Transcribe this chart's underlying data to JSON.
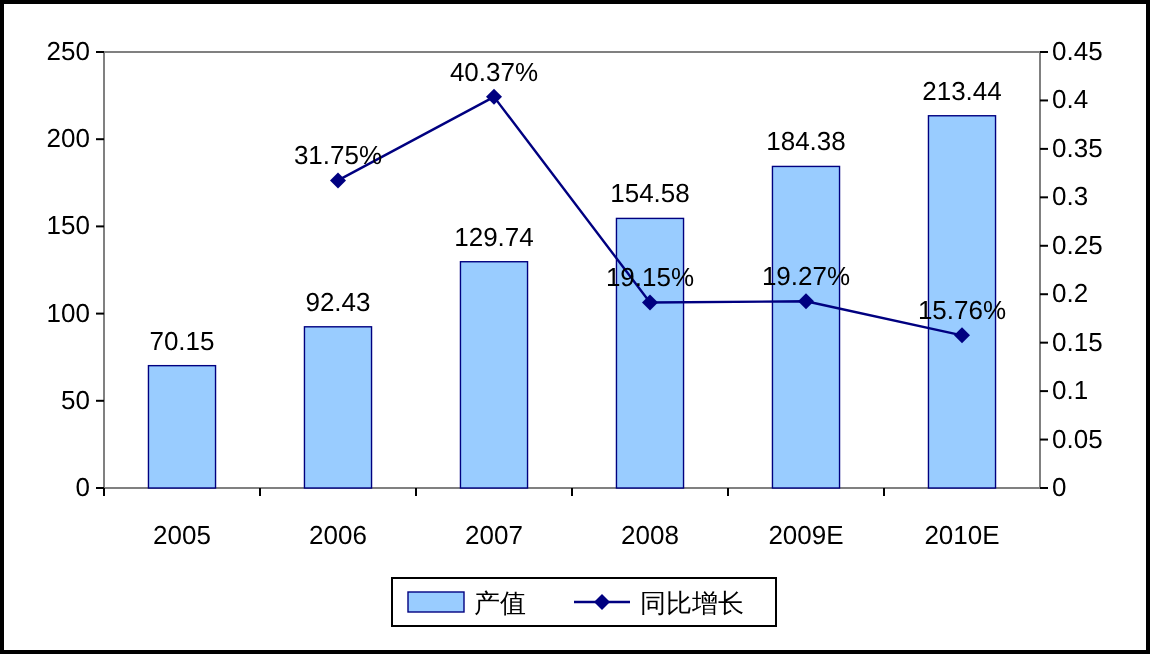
{
  "chart_data": {
    "type": "bar",
    "categories": [
      "2005",
      "2006",
      "2007",
      "2008",
      "2009E",
      "2010E"
    ],
    "series": [
      {
        "name": "产值",
        "color": "#99ccff",
        "values": [
          70.15,
          92.43,
          129.74,
          154.58,
          184.38,
          213.44
        ],
        "value_labels": [
          "70.15",
          "92.43",
          "129.74",
          "154.58",
          "184.38",
          "213.44"
        ]
      },
      {
        "name": "同比增长",
        "type": "line",
        "axis": "y2",
        "color": "#000080",
        "marker": "diamond",
        "values": [
          null,
          0.3175,
          0.4037,
          0.1915,
          0.1927,
          0.1576
        ],
        "value_labels": [
          null,
          "31.75%",
          "40.37%",
          "19.15%",
          "19.27%",
          "15.76%"
        ]
      }
    ],
    "ylim": [
      0,
      250
    ],
    "yticks": [
      0,
      50,
      100,
      150,
      200,
      250
    ],
    "y2lim": [
      0,
      0.45
    ],
    "y2ticks": [
      0,
      0.05,
      0.1,
      0.15,
      0.2,
      0.25,
      0.3,
      0.35,
      0.4,
      0.45
    ],
    "legend": "bottom",
    "grid": false
  }
}
